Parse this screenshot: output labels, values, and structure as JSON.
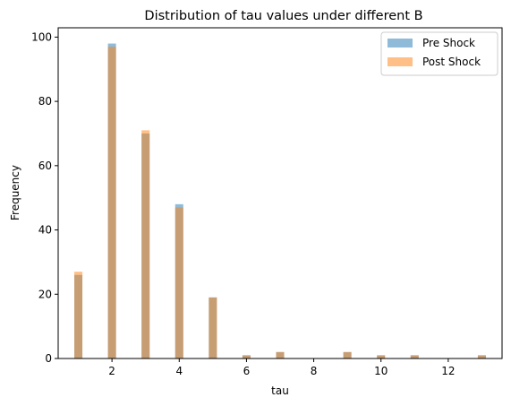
{
  "chart_data": {
    "type": "bar",
    "title": "Distribution of tau values under different B",
    "xlabel": "tau",
    "ylabel": "Frequency",
    "xlim": [
      0.4,
      13.6
    ],
    "ylim": [
      0,
      102.9
    ],
    "xticks": [
      2,
      4,
      6,
      8,
      10,
      12
    ],
    "yticks": [
      0,
      20,
      40,
      60,
      80,
      100
    ],
    "bin_width": 0.24,
    "legend_position": "top-right",
    "series": [
      {
        "name": "Pre Shock",
        "color": "#1f77b4",
        "alpha": 0.5,
        "x": [
          1,
          2,
          3,
          4,
          5,
          6,
          7,
          9,
          10,
          11,
          13
        ],
        "values": [
          26,
          98,
          70,
          48,
          19,
          1,
          2,
          2,
          1,
          1,
          1
        ]
      },
      {
        "name": "Post Shock",
        "color": "#ff7f0e",
        "alpha": 0.5,
        "x": [
          1,
          2,
          3,
          4,
          5,
          6,
          7,
          9,
          10,
          11,
          13
        ],
        "values": [
          27,
          97,
          71,
          47,
          19,
          1,
          2,
          2,
          1,
          1,
          1
        ]
      }
    ]
  }
}
